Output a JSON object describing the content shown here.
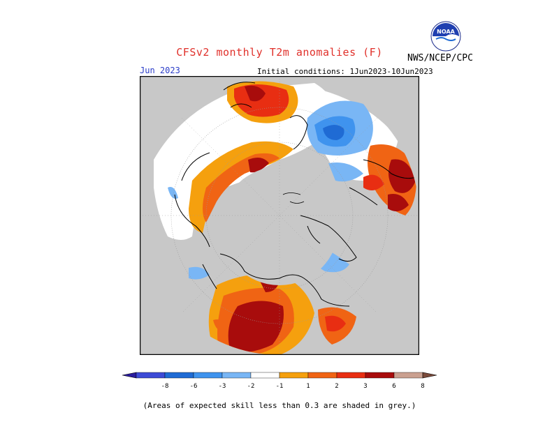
{
  "header": {
    "title": "CFSv2 monthly T2m anomalies (F)",
    "month": "Jun 2023",
    "initial_conditions": "Initial conditions: 1Jun2023-10Jun2023",
    "agency": "NWS/NCEP/CPC",
    "logo_text": "NOAA"
  },
  "colorbar": {
    "ticks": [
      "-8",
      "-6",
      "-3",
      "-2",
      "-1",
      "1",
      "2",
      "3",
      "6",
      "8"
    ],
    "colors": [
      "#2a1c9e",
      "#3d4bd6",
      "#1f6bd4",
      "#3f93ee",
      "#79b6f5",
      "#ffffff",
      "#f5a00e",
      "#f06414",
      "#e82e12",
      "#a80c0c",
      "#caa090",
      "#7a4a3a"
    ]
  },
  "map": {
    "land_color": "#c8c8c8",
    "positive_colors": [
      "#f5a00e",
      "#f06414",
      "#a80c0c"
    ],
    "negative_colors": [
      "#79b6f5",
      "#3f93ee",
      "#1f6bd4"
    ]
  },
  "footnote": "(Areas of expected skill less than 0.3 are shaded in grey.)"
}
